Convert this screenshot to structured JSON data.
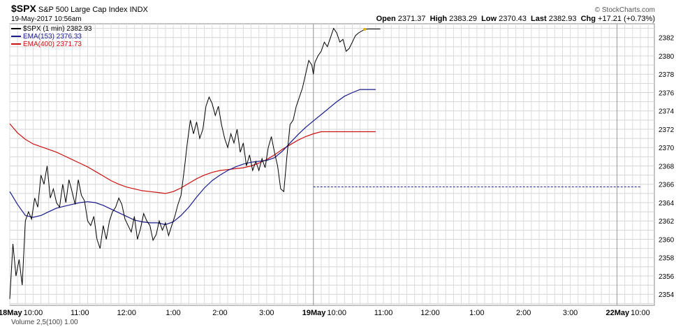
{
  "header": {
    "symbol": "$SPX",
    "name": "S&P 500 Large Cap Index",
    "exchange": "INDX",
    "timestamp": "19-May-2017 10:56am",
    "copyright": "© StockCharts.com",
    "open_label": "Open",
    "open": "2371.37",
    "high_label": "High",
    "high": "2383.29",
    "low_label": "Low",
    "low": "2370.43",
    "last_label": "Last",
    "last": "2382.93",
    "chg_label": "Chg",
    "chg": "+17.21 (+0.73%)"
  },
  "legend": [
    {
      "label": "$SPX (1 min) 2382.93",
      "color": "#000000"
    },
    {
      "label": "EMA(153) 2376.33",
      "color": "#1a1a8c"
    },
    {
      "label": "EMA(400) 2371.73",
      "color": "#cc1111"
    }
  ],
  "bottom_partial_label": "Volume 2,5(100) 1.00",
  "chart_data": {
    "type": "line",
    "title": "$SPX (1 min)",
    "x_ticks": [
      "18May",
      "10:00",
      "11:00",
      "12:00",
      "1:00",
      "2:00",
      "3:00",
      "19May",
      "10:00",
      "11:00",
      "12:00",
      "1:00",
      "2:00",
      "3:00",
      "22May",
      "10:00"
    ],
    "x_tick_index": [
      0,
      30,
      90,
      150,
      210,
      270,
      330,
      390,
      420,
      480,
      540,
      600,
      660,
      720,
      780,
      810
    ],
    "x_bold_ticks": [
      "18May",
      "19May",
      "22May"
    ],
    "y_ticks": [
      2354,
      2356,
      2358,
      2360,
      2362,
      2364,
      2366,
      2368,
      2370,
      2372,
      2374,
      2376,
      2378,
      2380,
      2382
    ],
    "ylim": [
      2352.8,
      2383.5
    ],
    "reference_line": 2365.72,
    "grid": true,
    "series": [
      {
        "name": "$SPX (1 min)",
        "color": "#000000",
        "x": [
          0,
          4,
          8,
          12,
          16,
          20,
          24,
          28,
          32,
          36,
          40,
          44,
          48,
          52,
          56,
          60,
          64,
          68,
          72,
          76,
          80,
          84,
          88,
          92,
          96,
          100,
          104,
          108,
          112,
          116,
          120,
          124,
          128,
          132,
          136,
          140,
          144,
          148,
          152,
          156,
          160,
          164,
          168,
          172,
          176,
          180,
          184,
          188,
          192,
          196,
          200,
          204,
          208,
          212,
          216,
          220,
          224,
          228,
          232,
          236,
          240,
          244,
          248,
          252,
          256,
          260,
          264,
          268,
          272,
          276,
          280,
          284,
          288,
          292,
          296,
          300,
          304,
          308,
          312,
          316,
          320,
          324,
          328,
          332,
          336,
          340,
          344,
          348,
          352,
          356,
          360,
          364,
          368,
          372,
          376,
          380,
          384,
          388,
          390,
          392,
          396,
          400,
          404,
          408,
          412,
          416,
          420,
          424,
          428,
          432,
          436,
          440,
          444,
          448,
          452,
          456,
          460,
          464,
          468,
          472,
          476
        ],
        "values": [
          2353.5,
          2359.5,
          2356.0,
          2357.8,
          2355.0,
          2362.0,
          2363.0,
          2362.2,
          2364.5,
          2363.5,
          2367.0,
          2366.0,
          2368.0,
          2364.5,
          2365.5,
          2364.0,
          2363.5,
          2366.0,
          2364.0,
          2366.5,
          2365.2,
          2363.8,
          2366.5,
          2364.8,
          2364.2,
          2362.0,
          2361.5,
          2362.5,
          2360.0,
          2359.0,
          2361.5,
          2360.0,
          2362.0,
          2363.0,
          2363.5,
          2364.5,
          2363.8,
          2362.2,
          2361.5,
          2360.8,
          2362.5,
          2360.0,
          2361.2,
          2362.8,
          2362.0,
          2361.5,
          2359.9,
          2360.5,
          2362.0,
          2361.0,
          2361.8,
          2360.4,
          2361.5,
          2362.5,
          2363.8,
          2364.8,
          2367.5,
          2370.5,
          2373.0,
          2371.5,
          2372.8,
          2371.0,
          2372.0,
          2374.5,
          2375.5,
          2374.8,
          2373.5,
          2374.5,
          2372.5,
          2371.0,
          2370.0,
          2371.5,
          2370.5,
          2372.0,
          2369.5,
          2370.5,
          2368.0,
          2369.2,
          2367.5,
          2368.5,
          2367.5,
          2368.8,
          2367.8,
          2370.0,
          2371.2,
          2369.5,
          2368.0,
          2365.5,
          2365.2,
          2369.0,
          2372.5,
          2373.0,
          2374.5,
          2375.5,
          2376.5,
          2378.0,
          2379.5,
          2379.0,
          2378.0,
          2379.3,
          2380.0,
          2380.5,
          2381.5,
          2381.0,
          2382.0,
          2383.0,
          2382.5,
          2381.5,
          2381.8,
          2380.5,
          2380.8,
          2381.5,
          2382.2,
          2382.5,
          2382.7,
          2382.9,
          2382.93,
          2382.93,
          2382.93,
          2382.93,
          2382.93
        ]
      },
      {
        "name": "EMA(153)",
        "color": "#1a1a8c",
        "x": [
          0,
          10,
          20,
          30,
          40,
          50,
          60,
          70,
          80,
          90,
          100,
          110,
          120,
          130,
          140,
          150,
          160,
          170,
          180,
          190,
          200,
          210,
          220,
          230,
          240,
          250,
          260,
          270,
          280,
          290,
          300,
          310,
          320,
          330,
          340,
          350,
          360,
          370,
          380,
          390,
          400,
          410,
          420,
          430,
          440,
          450,
          460,
          470
        ],
        "values": [
          2365.2,
          2363.8,
          2362.6,
          2362.4,
          2362.6,
          2363.0,
          2363.4,
          2363.6,
          2363.8,
          2364.0,
          2364.1,
          2364.0,
          2363.7,
          2363.3,
          2362.9,
          2362.5,
          2362.1,
          2361.9,
          2361.8,
          2361.8,
          2361.6,
          2361.9,
          2362.6,
          2363.5,
          2364.6,
          2365.6,
          2366.4,
          2367.0,
          2367.5,
          2367.9,
          2368.2,
          2368.4,
          2368.5,
          2368.6,
          2368.9,
          2369.6,
          2370.5,
          2371.4,
          2372.2,
          2372.9,
          2373.6,
          2374.3,
          2375.0,
          2375.6,
          2376.0,
          2376.33,
          2376.33,
          2376.33
        ]
      },
      {
        "name": "EMA(400)",
        "color": "#cc1111",
        "x": [
          0,
          10,
          20,
          30,
          40,
          50,
          60,
          70,
          80,
          90,
          100,
          110,
          120,
          130,
          140,
          150,
          160,
          170,
          180,
          190,
          200,
          210,
          220,
          230,
          240,
          250,
          260,
          270,
          280,
          290,
          300,
          310,
          320,
          330,
          340,
          350,
          360,
          370,
          380,
          390,
          400,
          410,
          420,
          430,
          440,
          450,
          460,
          470
        ],
        "values": [
          2372.6,
          2371.6,
          2370.9,
          2370.4,
          2370.1,
          2369.8,
          2369.5,
          2369.1,
          2368.7,
          2368.3,
          2367.9,
          2367.4,
          2366.9,
          2366.4,
          2366.0,
          2365.7,
          2365.5,
          2365.3,
          2365.2,
          2365.1,
          2365.0,
          2365.2,
          2365.6,
          2366.1,
          2366.6,
          2367.0,
          2367.3,
          2367.5,
          2367.6,
          2367.7,
          2367.8,
          2368.0,
          2368.3,
          2368.7,
          2369.2,
          2369.8,
          2370.3,
          2370.8,
          2371.2,
          2371.5,
          2371.73,
          2371.73,
          2371.73,
          2371.73,
          2371.73,
          2371.73,
          2371.73,
          2371.73
        ]
      }
    ]
  }
}
